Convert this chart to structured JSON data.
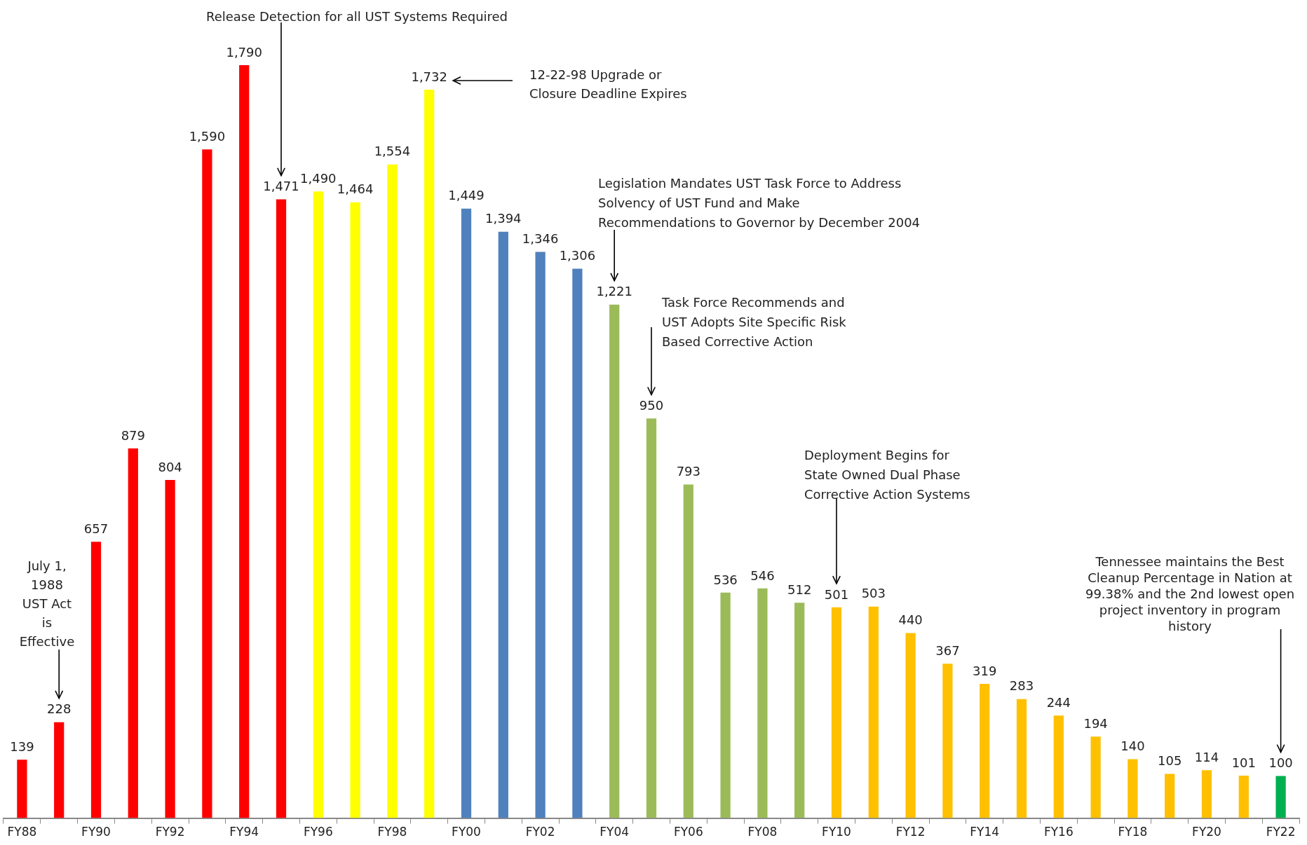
{
  "chart_data": {
    "type": "bar",
    "categories": [
      "FY88",
      null,
      "FY90",
      null,
      "FY92",
      null,
      "FY94",
      null,
      "FY96",
      null,
      "FY98",
      null,
      "FY00",
      null,
      "FY02",
      null,
      "FY04",
      null,
      "FY06",
      null,
      "FY08",
      null,
      "FY10",
      null,
      "FY12",
      null,
      "FY14",
      null,
      "FY16",
      null,
      "FY18",
      null,
      "FY20",
      null,
      "FY22"
    ],
    "values": [
      139,
      228,
      657,
      879,
      804,
      1590,
      1790,
      1471,
      1490,
      1464,
      1554,
      1732,
      1449,
      1394,
      1346,
      1306,
      1221,
      950,
      793,
      536,
      546,
      512,
      501,
      503,
      440,
      367,
      319,
      283,
      244,
      194,
      140,
      105,
      114,
      101,
      100
    ],
    "value_labels": [
      "139",
      "228",
      "657",
      "879",
      "804",
      "1,590",
      "1,790",
      "1,471",
      "1,490",
      "1,464",
      "1,554",
      "1,732",
      "1,449",
      "1,394",
      "1,346",
      "1,306",
      "1,221",
      "950",
      "793",
      "536",
      "546",
      "512",
      "501",
      "503",
      "440",
      "367",
      "319",
      "283",
      "244",
      "194",
      "140",
      "105",
      "114",
      "101",
      "100"
    ],
    "colors": [
      "#ff0000",
      "#ff0000",
      "#ff0000",
      "#ff0000",
      "#ff0000",
      "#ff0000",
      "#ff0000",
      "#ff0000",
      "#ffff00",
      "#ffff00",
      "#ffff00",
      "#ffff00",
      "#4f81bd",
      "#4f81bd",
      "#4f81bd",
      "#4f81bd",
      "#9bbb59",
      "#9bbb59",
      "#9bbb59",
      "#9bbb59",
      "#9bbb59",
      "#9bbb59",
      "#ffc000",
      "#ffc000",
      "#ffc000",
      "#ffc000",
      "#ffc000",
      "#ffc000",
      "#ffc000",
      "#ffc000",
      "#ffc000",
      "#ffc000",
      "#ffc000",
      "#ffc000",
      "#00b050"
    ],
    "annotations": [
      "July 1,\n1988\nUST Act\nis\nEffective",
      "Release Detection for all UST Systems Required",
      "12-22-98 Upgrade or\nClosure Deadline Expires",
      "Legislation Mandates UST Task Force to Address\nSolvency of UST Fund and Make\nRecommendations to Governor by December 2004",
      "Task Force Recommends and\nUST Adopts Site Specific Risk\nBased Corrective Action",
      "Deployment Begins for\nState Owned Dual Phase\nCorrective Action Systems",
      "Tennessee maintains the Best\nCleanup Percentage in Nation at\n99.38% and the 2nd lowest open\nproject inventory in program\nhistory"
    ]
  }
}
